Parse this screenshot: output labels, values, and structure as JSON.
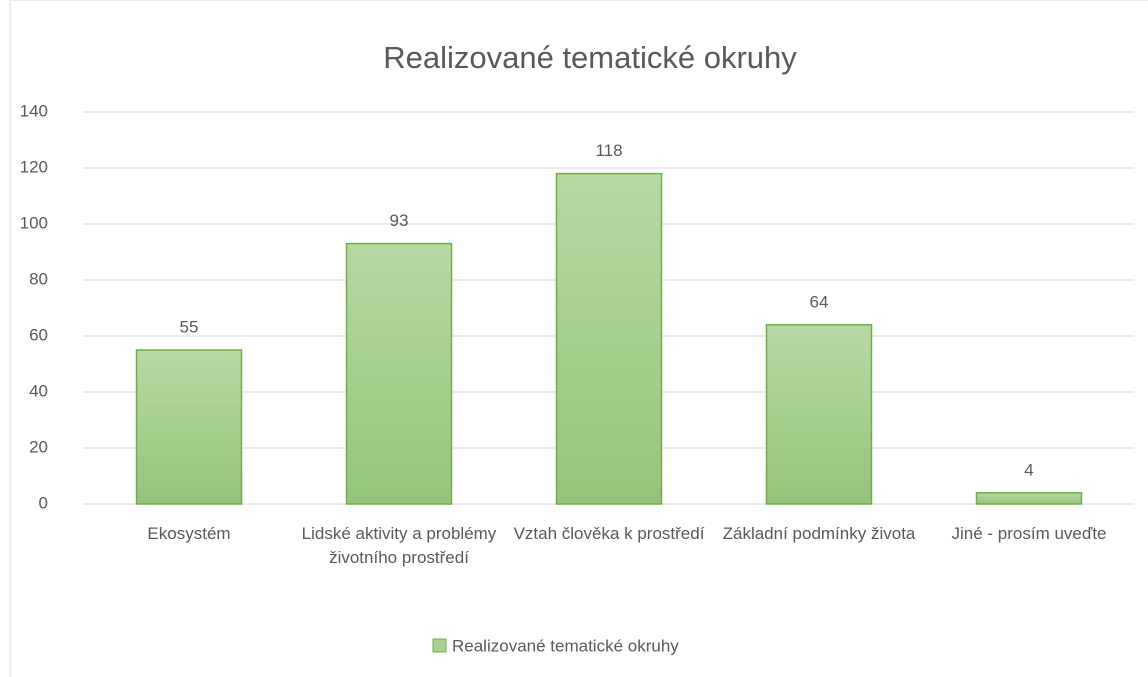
{
  "chart_data": {
    "type": "bar",
    "title": "Realizované tematické okruhy",
    "categories": [
      "Ekosystém",
      "Lidské aktivity a problémy životního prostředí",
      "Vztah člověka k prostředí",
      "Základní podmínky života",
      "Jiné - prosím uveďte"
    ],
    "series": [
      {
        "name": "Realizované tematické okruhy",
        "color": "#a9d18e",
        "values": [
          55,
          93,
          118,
          64,
          4
        ]
      }
    ],
    "ylim": [
      0,
      140
    ],
    "yticks": [
      0,
      20,
      40,
      60,
      80,
      100,
      120,
      140
    ],
    "grid": true,
    "legend": "bottom"
  }
}
